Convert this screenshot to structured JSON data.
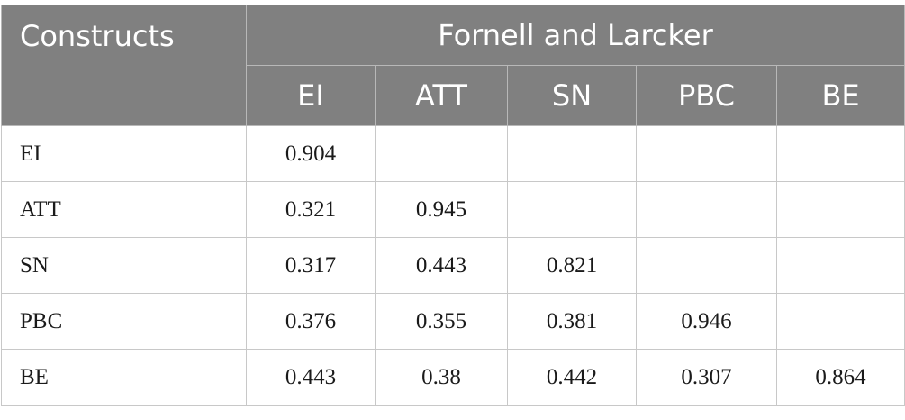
{
  "table": {
    "corner_header": "Constructs",
    "group_header": "Fornell and Larcker",
    "columns": [
      "EI",
      "ATT",
      "SN",
      "PBC",
      "BE"
    ],
    "rows": [
      {
        "label": "EI",
        "cells": [
          "0.904",
          "",
          "",
          "",
          ""
        ]
      },
      {
        "label": "ATT",
        "cells": [
          "0.321",
          "0.945",
          "",
          "",
          ""
        ]
      },
      {
        "label": "SN",
        "cells": [
          "0.317",
          "0.443",
          "0.821",
          "",
          ""
        ]
      },
      {
        "label": "PBC",
        "cells": [
          "0.376",
          "0.355",
          "0.381",
          "0.946",
          ""
        ]
      },
      {
        "label": "BE",
        "cells": [
          "0.443",
          "0.38",
          "0.442",
          "0.307",
          "0.864"
        ]
      }
    ]
  },
  "colors": {
    "header_bg": "#808080",
    "header_text": "#ffffff",
    "border": "#c8c8c8"
  }
}
